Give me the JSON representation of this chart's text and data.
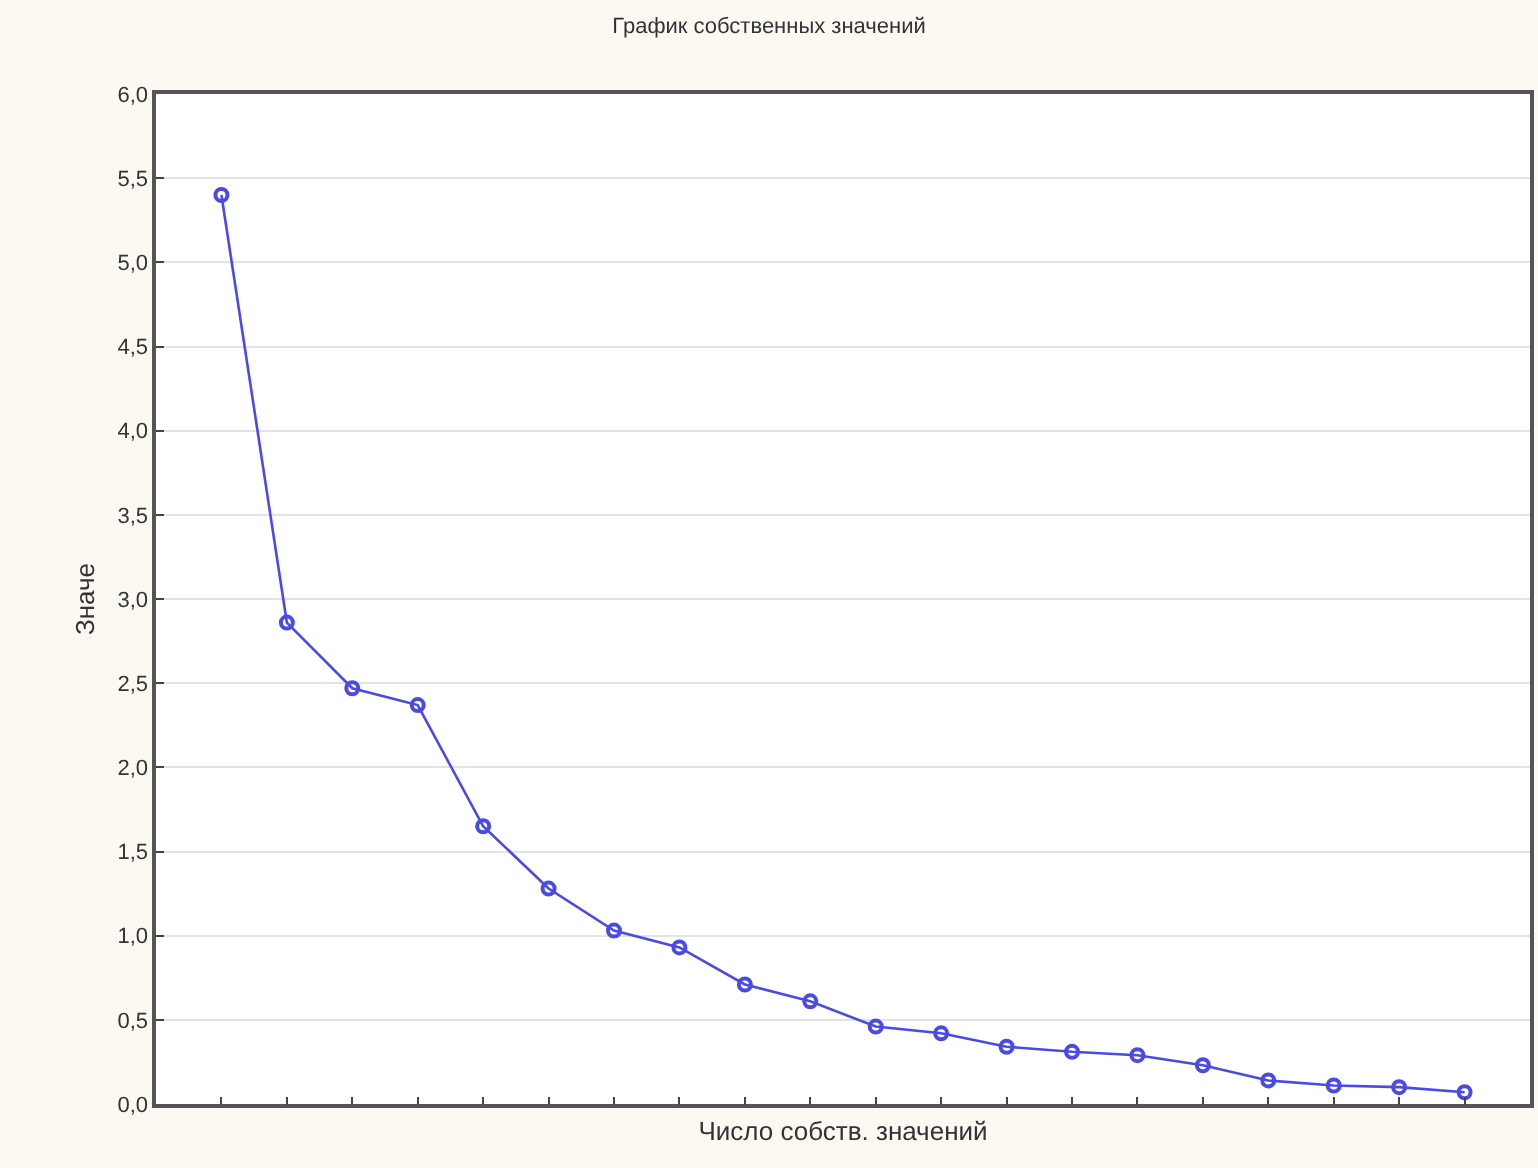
{
  "chart_data": {
    "type": "line",
    "title": "График собственных значений",
    "xlabel": "Число собств. значений",
    "ylabel": "Значе",
    "categories": [
      null,
      null,
      null,
      null,
      null,
      null,
      null,
      null,
      null,
      null,
      null,
      null,
      null,
      null,
      null,
      null,
      null,
      null,
      null,
      null
    ],
    "series": [
      {
        "color": "#4a4ae6",
        "values": [
          5.4,
          2.86,
          2.47,
          2.37,
          1.65,
          1.28,
          1.03,
          0.93,
          0.71,
          0.61,
          0.46,
          0.42,
          0.34,
          0.31,
          0.29,
          0.23,
          0.14,
          0.11,
          0.1,
          0.07
        ]
      }
    ],
    "ylim": [
      0,
      6
    ],
    "yticks": [
      {
        "value": 0,
        "label": "0,0"
      },
      {
        "value": 0.5,
        "label": "0,5"
      },
      {
        "value": 1,
        "label": "1,0"
      },
      {
        "value": 1.5,
        "label": "1,5"
      },
      {
        "value": 2,
        "label": "2,0"
      },
      {
        "value": 2.5,
        "label": "2,5"
      },
      {
        "value": 3,
        "label": "3,0"
      },
      {
        "value": 3.5,
        "label": "3,5"
      },
      {
        "value": 4,
        "label": "4,0"
      },
      {
        "value": 4.5,
        "label": "4,5"
      },
      {
        "value": 5,
        "label": "5,0"
      },
      {
        "value": 5.5,
        "label": "5,5"
      },
      {
        "value": 6,
        "label": "6,0"
      }
    ],
    "grid": "y",
    "marker": "circle",
    "line_style": "solid"
  }
}
